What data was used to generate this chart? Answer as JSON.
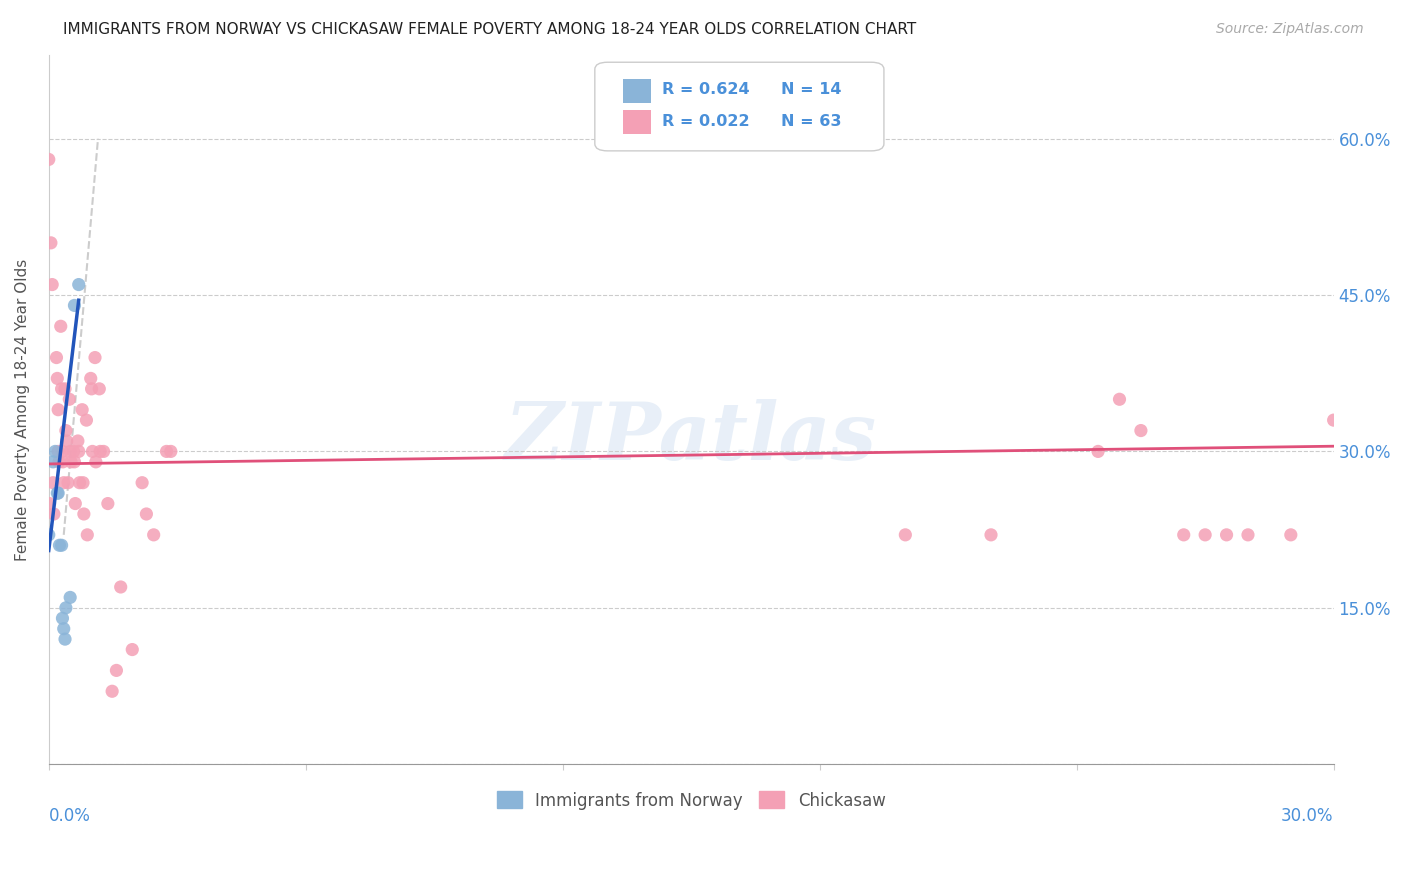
{
  "title": "IMMIGRANTS FROM NORWAY VS CHICKASAW FEMALE POVERTY AMONG 18-24 YEAR OLDS CORRELATION CHART",
  "source": "Source: ZipAtlas.com",
  "ylabel": "Female Poverty Among 18-24 Year Olds",
  "color_norway": "#8ab4d8",
  "color_chickasaw": "#f4a0b5",
  "color_norway_line": "#2255bb",
  "color_chickasaw_line": "#e0507a",
  "color_dashed_line": "#c0c0c0",
  "color_axis_labels": "#4a90d9",
  "color_title": "#222222",
  "watermark": "ZIPatlas",
  "norway_x": [
    0.0,
    0.1,
    0.15,
    0.2,
    0.22,
    0.25,
    0.3,
    0.32,
    0.35,
    0.38,
    0.4,
    0.5,
    0.6,
    0.7
  ],
  "norway_y": [
    22.0,
    29.0,
    30.0,
    26.0,
    26.0,
    21.0,
    21.0,
    14.0,
    13.0,
    12.0,
    15.0,
    16.0,
    44.0,
    46.0
  ],
  "chickasaw_x": [
    0.0,
    0.02,
    0.05,
    0.08,
    0.1,
    0.12,
    0.18,
    0.2,
    0.22,
    0.22,
    0.24,
    0.28,
    0.3,
    0.32,
    0.33,
    0.35,
    0.38,
    0.4,
    0.42,
    0.45,
    0.48,
    0.5,
    0.52,
    0.58,
    0.6,
    0.62,
    0.68,
    0.7,
    0.72,
    0.78,
    0.8,
    0.82,
    0.88,
    0.9,
    0.98,
    1.0,
    1.02,
    1.08,
    1.1,
    1.18,
    1.2,
    1.28,
    1.38,
    1.48,
    1.58,
    1.68,
    1.95,
    2.18,
    2.28,
    2.45,
    2.75,
    2.85,
    20.0,
    22.0,
    24.5,
    25.0,
    25.5,
    26.5,
    27.0,
    27.5,
    28.0,
    29.0,
    30.0
  ],
  "chickasaw_y": [
    58.0,
    25.0,
    50.0,
    46.0,
    27.0,
    24.0,
    39.0,
    37.0,
    34.0,
    30.0,
    29.0,
    42.0,
    36.0,
    30.0,
    29.0,
    27.0,
    36.0,
    32.0,
    31.0,
    27.0,
    35.0,
    30.0,
    29.0,
    30.0,
    29.0,
    25.0,
    31.0,
    30.0,
    27.0,
    34.0,
    27.0,
    24.0,
    33.0,
    22.0,
    37.0,
    36.0,
    30.0,
    39.0,
    29.0,
    36.0,
    30.0,
    30.0,
    25.0,
    7.0,
    9.0,
    17.0,
    11.0,
    27.0,
    24.0,
    22.0,
    30.0,
    30.0,
    22.0,
    22.0,
    30.0,
    35.0,
    32.0,
    22.0,
    22.0,
    22.0,
    22.0,
    22.0,
    33.0
  ],
  "norway_line_x": [
    0.0,
    0.7
  ],
  "norway_line_y": [
    20.5,
    44.5
  ],
  "chickasaw_line_x": [
    0.0,
    30.0
  ],
  "chickasaw_line_y": [
    28.8,
    30.5
  ],
  "dashed_line_x": [
    0.35,
    1.15
  ],
  "dashed_line_y": [
    22.0,
    60.0
  ],
  "xlim": [
    0,
    30
  ],
  "ylim": [
    0,
    68
  ],
  "yticks": [
    0,
    15,
    30,
    45,
    60
  ],
  "ytick_labels": [
    "",
    "15.0%",
    "30.0%",
    "45.0%",
    "60.0%"
  ],
  "legend_r1": "R = 0.624",
  "legend_n1": "N = 14",
  "legend_r2": "R = 0.022",
  "legend_n2": "N = 63"
}
